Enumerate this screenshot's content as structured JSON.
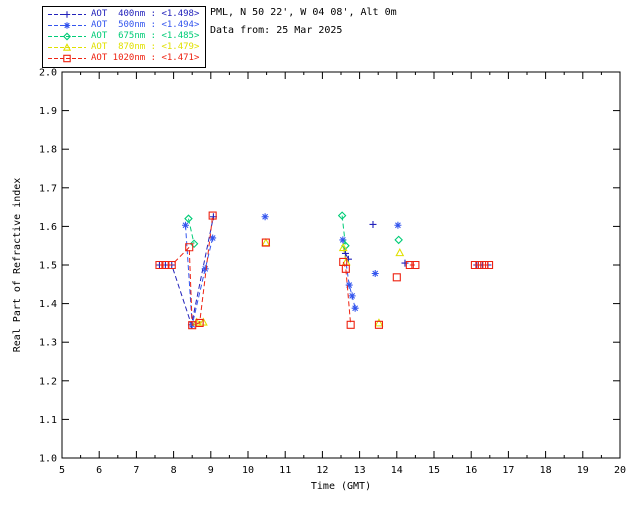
{
  "header": {
    "line1": "PML, N 50 22', W 04 08', Alt 0m",
    "line2": "Data from: 25 Mar 2025"
  },
  "legend": {
    "items": [
      {
        "text": "AOT  400nm : <1.498>",
        "marker": "plus",
        "color": "#2222bb"
      },
      {
        "text": "AOT  500nm : <1.494>",
        "marker": "asterisk",
        "color": "#3355ee"
      },
      {
        "text": "AOT  675nm : <1.485>",
        "marker": "diamond",
        "color": "#00cc77"
      },
      {
        "text": "AOT  870nm : <1.479>",
        "marker": "triangle",
        "color": "#e0e000"
      },
      {
        "text": "AOT 1020nm : <1.471>",
        "marker": "square",
        "color": "#ee2211"
      }
    ]
  },
  "chart_data": {
    "type": "scatter",
    "title": "",
    "xlabel": "Time (GMT)",
    "ylabel": "Real Part of Refractive index",
    "xlim": [
      5,
      20
    ],
    "xstep": 1,
    "ylim": [
      1.0,
      2.0
    ],
    "ystep": 0.1,
    "grid": false,
    "legend_position": "top-left-outside",
    "frame_color": "#000000",
    "line_style": "dashed",
    "series": [
      {
        "name": "AOT 400nm",
        "mean_refractive_index": 1.498,
        "color": "#2222bb",
        "marker": "plus",
        "segments": [
          [
            [
              7.62,
              1.5
            ],
            [
              7.78,
              1.5
            ],
            [
              7.95,
              1.5
            ],
            [
              8.48,
              1.345
            ],
            [
              9.07,
              1.625
            ]
          ],
          [
            [
              12.62,
              1.53
            ],
            [
              12.7,
              1.515
            ]
          ],
          [
            [
              13.36,
              1.605
            ]
          ],
          [
            [
              14.22,
              1.505
            ]
          ],
          [
            [
              16.15,
              1.5
            ],
            [
              16.3,
              1.5
            ],
            [
              16.45,
              1.5
            ]
          ]
        ]
      },
      {
        "name": "AOT 500nm",
        "mean_refractive_index": 1.494,
        "color": "#3355ee",
        "marker": "asterisk",
        "segments": [
          [
            [
              8.32,
              1.603
            ],
            [
              8.5,
              1.345
            ],
            [
              8.85,
              1.49
            ],
            [
              9.05,
              1.57
            ]
          ],
          [
            [
              10.46,
              1.625
            ]
          ],
          [
            [
              12.55,
              1.565
            ],
            [
              12.72,
              1.448
            ],
            [
              12.8,
              1.42
            ],
            [
              12.88,
              1.388
            ]
          ],
          [
            [
              13.42,
              1.478
            ]
          ],
          [
            [
              14.03,
              1.603
            ]
          ]
        ]
      },
      {
        "name": "AOT 675nm",
        "mean_refractive_index": 1.485,
        "color": "#00cc77",
        "marker": "diamond",
        "segments": [
          [
            [
              8.4,
              1.62
            ],
            [
              8.55,
              1.555
            ]
          ],
          [
            [
              12.53,
              1.628
            ],
            [
              12.62,
              1.55
            ]
          ],
          [
            [
              14.05,
              1.565
            ]
          ]
        ]
      },
      {
        "name": "AOT 870nm",
        "mean_refractive_index": 1.479,
        "color": "#e0e000",
        "marker": "triangle",
        "segments": [
          [
            [
              8.62,
              1.352
            ],
            [
              8.8,
              1.352
            ]
          ],
          [
            [
              10.48,
              1.558
            ]
          ],
          [
            [
              12.56,
              1.545
            ],
            [
              12.64,
              1.508
            ]
          ],
          [
            [
              13.52,
              1.35
            ]
          ],
          [
            [
              14.08,
              1.532
            ]
          ]
        ]
      },
      {
        "name": "AOT 1020nm",
        "mean_refractive_index": 1.471,
        "color": "#ee2211",
        "marker": "square",
        "segments": [
          [
            [
              7.62,
              1.5
            ],
            [
              7.78,
              1.5
            ],
            [
              7.95,
              1.5
            ],
            [
              8.42,
              1.546
            ],
            [
              8.5,
              1.344
            ],
            [
              8.7,
              1.35
            ],
            [
              9.05,
              1.628
            ]
          ],
          [
            [
              10.48,
              1.558
            ]
          ],
          [
            [
              12.56,
              1.508
            ],
            [
              12.63,
              1.49
            ],
            [
              12.76,
              1.345
            ]
          ],
          [
            [
              13.52,
              1.345
            ]
          ],
          [
            [
              14.0,
              1.468
            ]
          ],
          [
            [
              14.35,
              1.5
            ],
            [
              14.5,
              1.5
            ]
          ],
          [
            [
              16.1,
              1.5
            ],
            [
              16.22,
              1.5
            ],
            [
              16.35,
              1.5
            ],
            [
              16.48,
              1.5
            ]
          ]
        ]
      }
    ]
  }
}
